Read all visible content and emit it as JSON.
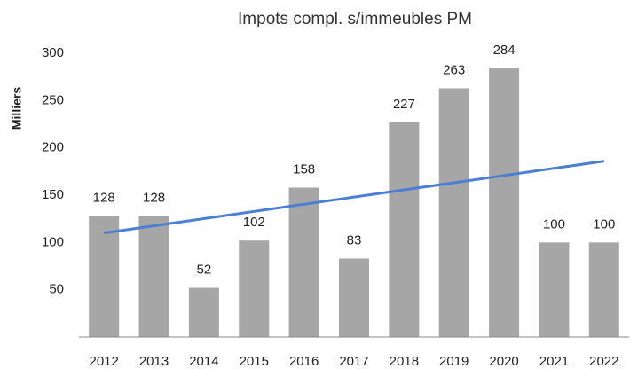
{
  "chart_data": {
    "type": "bar",
    "title": "Impots compl. s/immeubles PM",
    "y_label": "Milliers",
    "categories": [
      "2012",
      "2013",
      "2014",
      "2015",
      "2016",
      "2017",
      "2018",
      "2019",
      "2020",
      "2021",
      "2022"
    ],
    "values": [
      128,
      128,
      52,
      102,
      158,
      83,
      227,
      263,
      284,
      100,
      100
    ],
    "color": "#a6a6a6",
    "trendline": {
      "color": "#4a7fd4",
      "values": [
        110,
        186
      ]
    },
    "ylim": [
      0,
      300
    ],
    "yticks": [
      50,
      100,
      150,
      200,
      250,
      300
    ],
    "grid": false
  }
}
